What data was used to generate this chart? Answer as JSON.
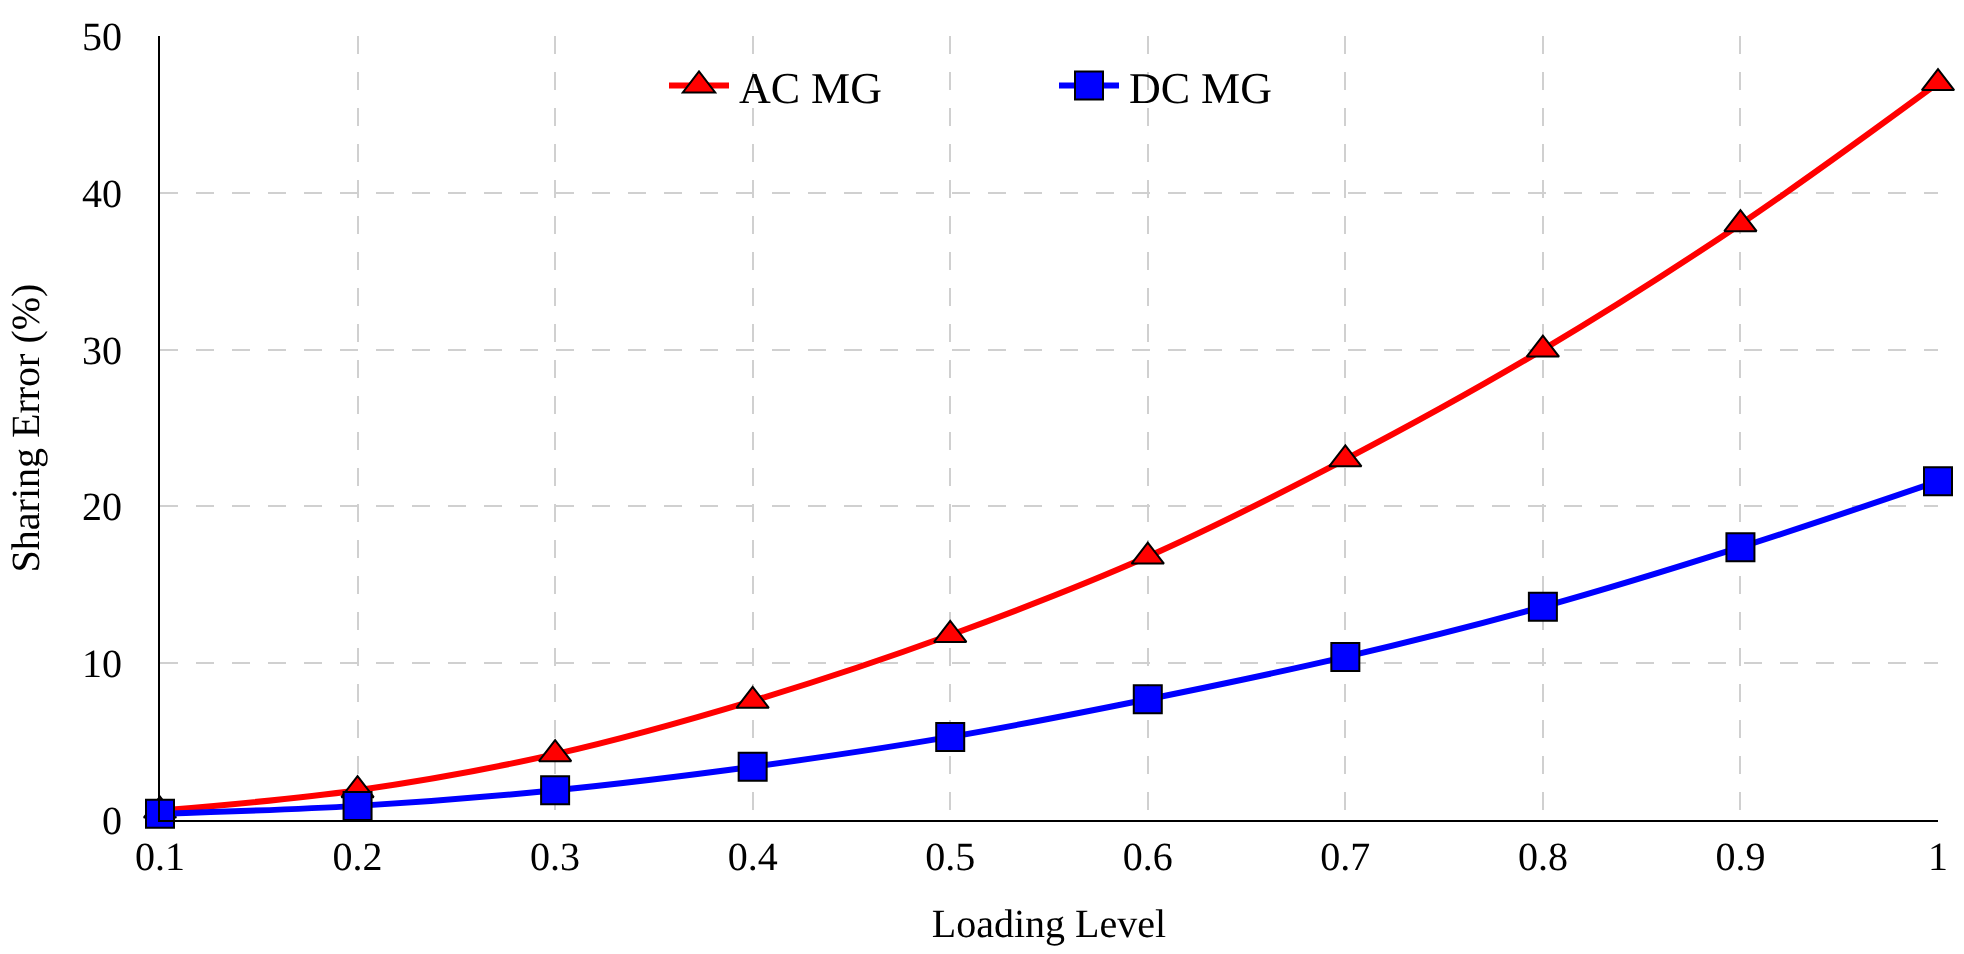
{
  "chart_data": {
    "type": "line",
    "xlabel": "Loading Level",
    "ylabel": "Sharing Error (%)",
    "x": [
      0.1,
      0.2,
      0.3,
      0.4,
      0.5,
      0.6,
      0.7,
      0.8,
      0.9,
      1
    ],
    "series": [
      {
        "name": "AC MG",
        "color": "#ff0000",
        "marker": "triangle",
        "values": [
          0.6,
          1.9,
          4.2,
          7.6,
          11.8,
          16.8,
          23,
          30,
          38,
          47
        ]
      },
      {
        "name": "DC MG",
        "color": "#0000ff",
        "marker": "square",
        "values": [
          0.4,
          0.9,
          1.9,
          3.4,
          5.3,
          7.7,
          10.4,
          13.6,
          17.4,
          21.6
        ]
      }
    ],
    "xlim": [
      0.1,
      1
    ],
    "xticks": [
      0.1,
      0.2,
      0.3,
      0.4,
      0.5,
      0.6,
      0.7,
      0.8,
      0.9,
      1
    ],
    "ylim": [
      0,
      50
    ],
    "yticks": [
      0,
      10,
      20,
      30,
      40,
      50
    ],
    "grid": true,
    "legend": "top",
    "line_style": "solid"
  }
}
